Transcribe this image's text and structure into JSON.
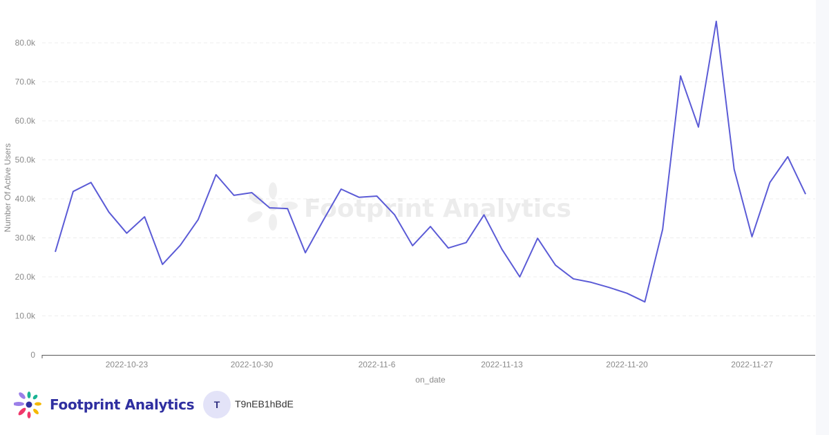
{
  "chart_data": {
    "type": "line",
    "title": "",
    "xlabel": "on_date",
    "ylabel": "Number Of Active Users",
    "ylim": [
      0,
      80000
    ],
    "grid": true,
    "y_ticks": [
      "0",
      "10.0k",
      "20.0k",
      "30.0k",
      "40.0k",
      "50.0k",
      "60.0k",
      "70.0k",
      "80.0k"
    ],
    "x_ticks": [
      "2022-10-23",
      "2022-10-30",
      "2022-11-6",
      "2022-11-13",
      "2022-11-20",
      "2022-11-27"
    ],
    "x_start": "2022-10-19",
    "x_end": "2022-11-30",
    "color": "#5b5bd6",
    "values": [
      26400,
      41900,
      44200,
      36600,
      31200,
      35400,
      23200,
      28100,
      34700,
      46200,
      40900,
      41600,
      37700,
      37500,
      26200,
      34500,
      42500,
      40400,
      40700,
      35900,
      28000,
      32900,
      27400,
      28800,
      35900,
      27100,
      20000,
      29900,
      23000,
      19500,
      18600,
      17300,
      15800,
      13600,
      32200,
      71500,
      58400,
      85500,
      47600,
      30300,
      44200,
      50800,
      41200
    ]
  },
  "watermark": "Footprint Analytics",
  "footer": {
    "brand": "Footprint Analytics",
    "avatar_initial": "T",
    "username": "T9nEB1hBdE"
  }
}
